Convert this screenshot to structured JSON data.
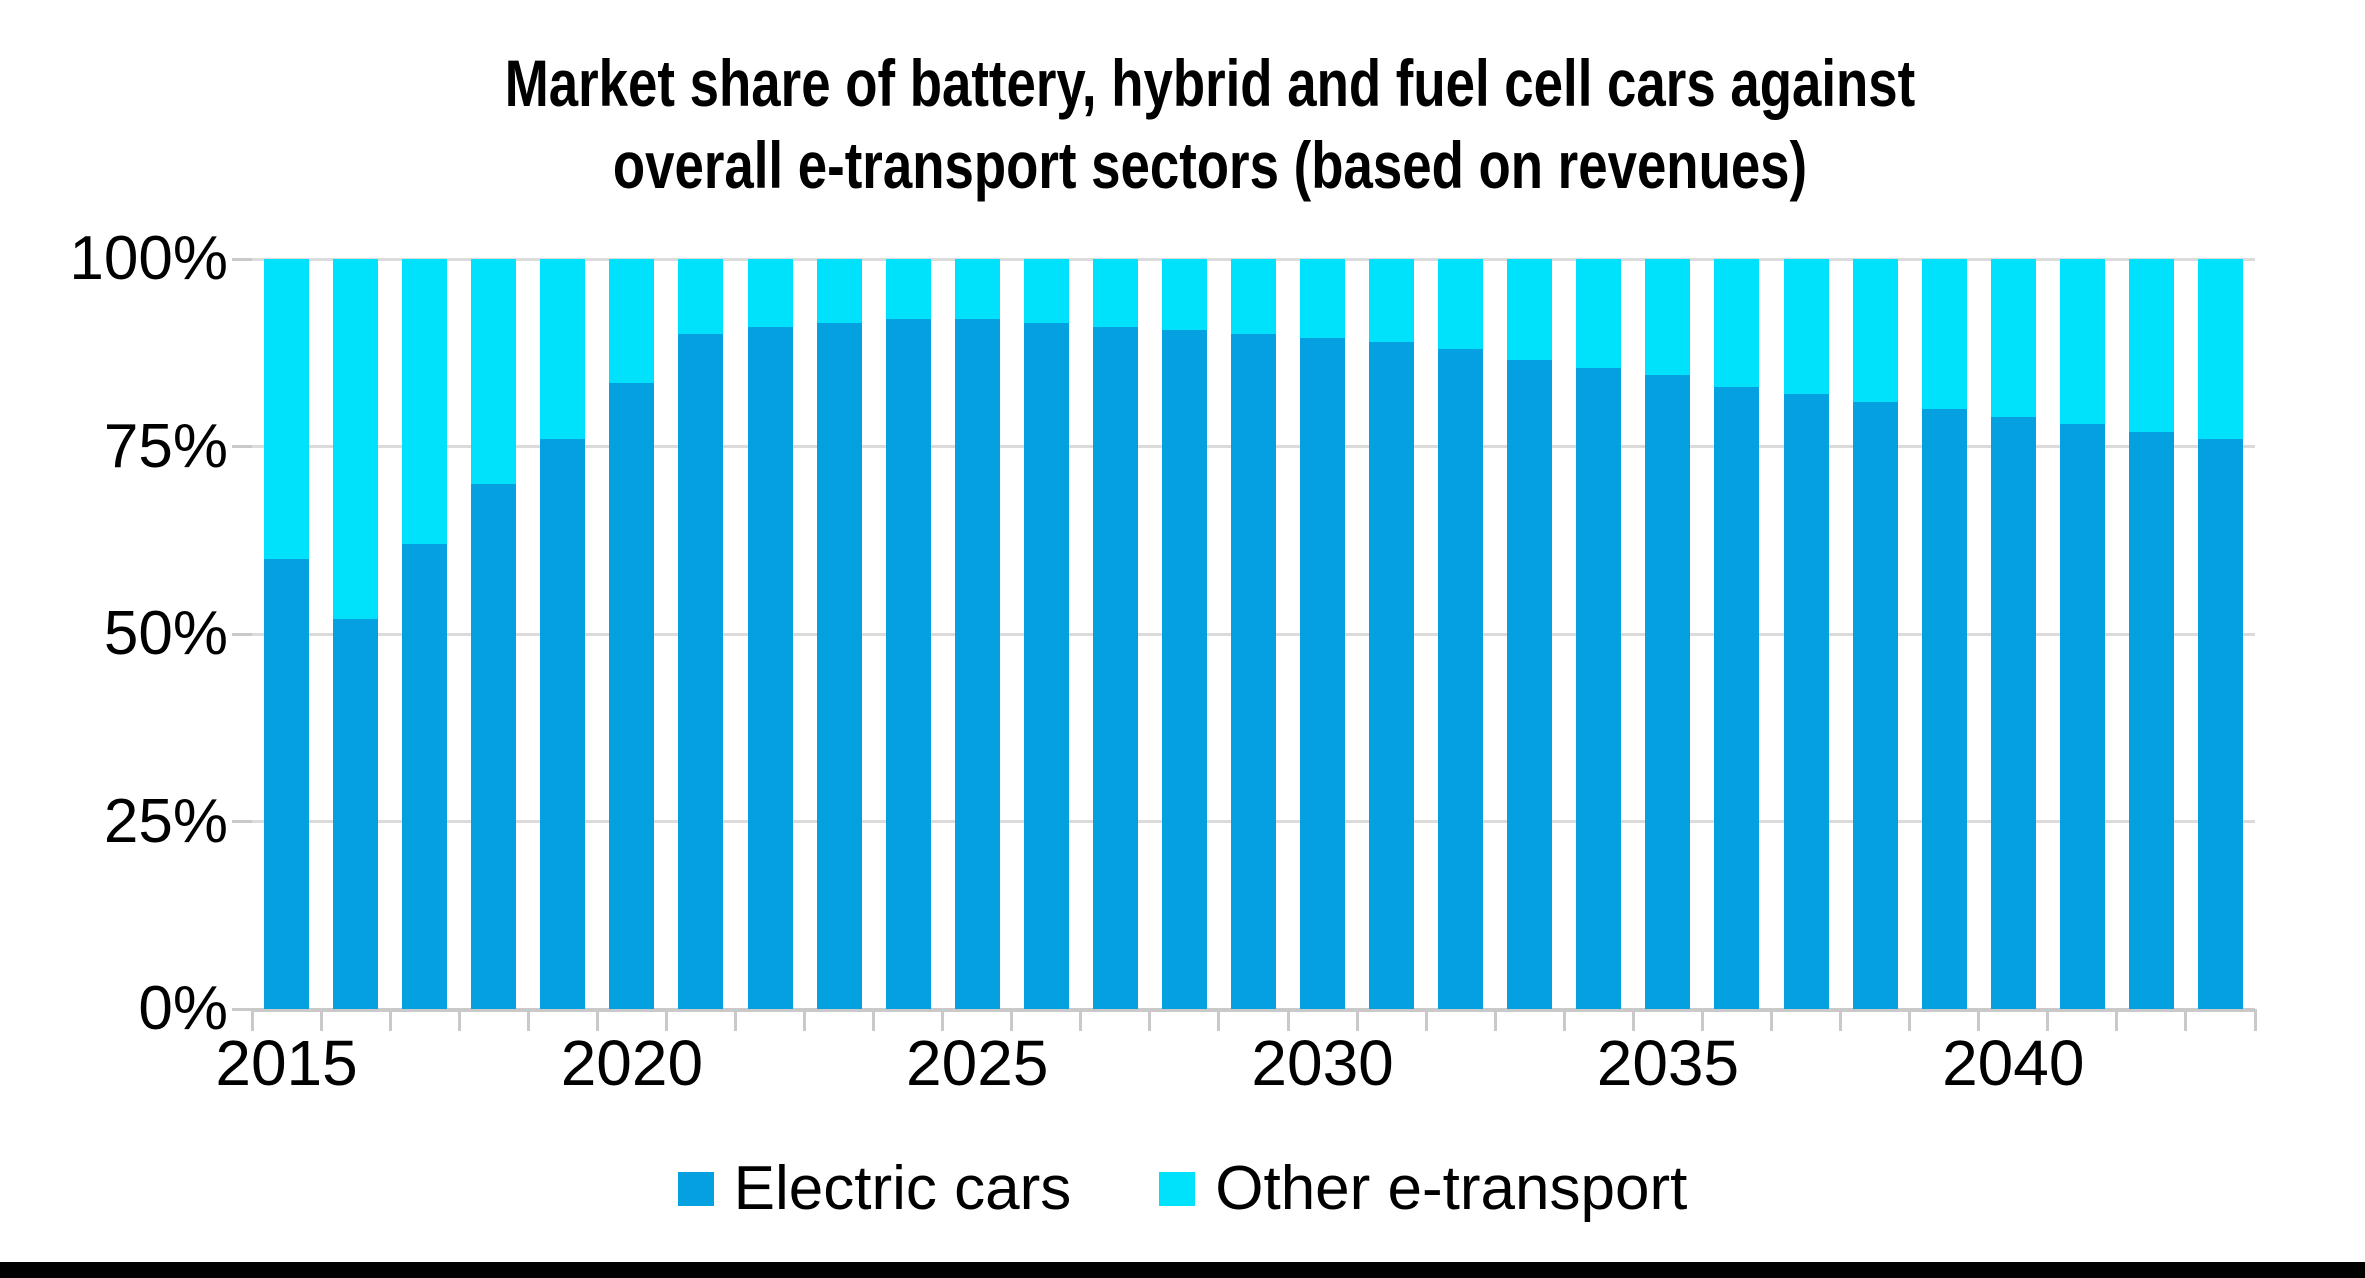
{
  "title": {
    "line1": "Market share of battery, hybrid and fuel cell cars against",
    "line2": "overall e-transport sectors (based on revenues)"
  },
  "chart_data": {
    "type": "bar",
    "stacked": true,
    "stacked_total": 100,
    "title": "Market share of battery, hybrid and fuel cell cars against overall e-transport sectors (based on revenues)",
    "categories": [
      "2015",
      "2016",
      "2017",
      "2018",
      "2019",
      "2020",
      "2021",
      "2022",
      "2023",
      "2024",
      "2025",
      "2026",
      "2027",
      "2028",
      "2029",
      "2030",
      "2031",
      "2032",
      "2033",
      "2034",
      "2035",
      "2036",
      "2037",
      "2038",
      "2039",
      "2040",
      "2041",
      "2042",
      "2043"
    ],
    "series": [
      {
        "name": "Electric cars",
        "color": "#04A0E0",
        "values": [
          60,
          52,
          62,
          70,
          76,
          83.5,
          90,
          91,
          91.5,
          92,
          92,
          91.5,
          91,
          90.5,
          90,
          89.5,
          89,
          88,
          86.5,
          85.5,
          84.5,
          83,
          82,
          81,
          80,
          79,
          78,
          77,
          76
        ]
      },
      {
        "name": "Other e-transport",
        "color": "#00E2FC",
        "values": [
          40,
          48,
          38,
          30,
          24,
          16.5,
          10,
          9,
          8.5,
          8,
          8,
          8.5,
          9,
          9.5,
          10,
          10.5,
          11,
          12,
          13.5,
          14.5,
          15.5,
          17,
          18,
          19,
          20,
          21,
          22,
          23,
          24
        ]
      }
    ],
    "xlabel": "",
    "ylabel": "",
    "ylim": [
      0,
      100
    ],
    "yticks": [
      {
        "value": 100,
        "label": "100%"
      },
      {
        "value": 75,
        "label": "75%"
      },
      {
        "value": 50,
        "label": "50%"
      },
      {
        "value": 25,
        "label": "25%"
      },
      {
        "value": 0,
        "label": "0%"
      }
    ],
    "xticks": [
      {
        "index": 0,
        "label": "2015"
      },
      {
        "index": 5,
        "label": "2020"
      },
      {
        "index": 10,
        "label": "2025"
      },
      {
        "index": 15,
        "label": "2030"
      },
      {
        "index": 20,
        "label": "2035"
      },
      {
        "index": 25,
        "label": "2040"
      }
    ],
    "grid": true,
    "legend_position": "bottom"
  },
  "legend": {
    "items": [
      {
        "label": "Electric cars",
        "color": "#04A0E0"
      },
      {
        "label": "Other e-transport",
        "color": "#00E2FC"
      }
    ]
  },
  "colors": {
    "electric_cars": "#04A0E0",
    "other_e_transport": "#00E2FC",
    "gridline": "#DBDBDB",
    "axis": "#C9C9C9",
    "text": "#000000",
    "footer_bar": "#000000",
    "background": "#FFFFFF"
  }
}
